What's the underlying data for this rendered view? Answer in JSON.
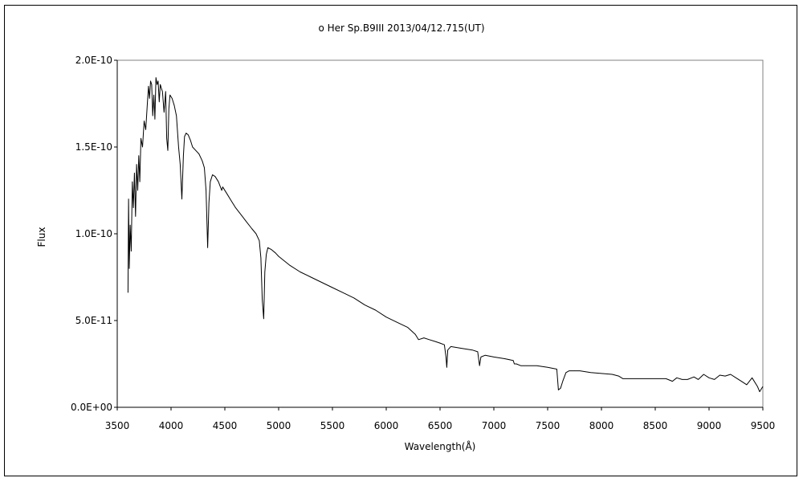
{
  "chart_data": {
    "type": "line",
    "title": "o Her   Sp.B9III   2013/04/12.715(UT)",
    "xlabel": "Wavelength(Å)",
    "ylabel": "Flux",
    "xlim": [
      3500,
      9500
    ],
    "ylim": [
      0,
      2e-10
    ],
    "x_ticks": [
      3500,
      4000,
      4500,
      5000,
      5500,
      6000,
      6500,
      7000,
      7500,
      8000,
      8500,
      9000,
      9500
    ],
    "x_tick_labels": [
      "3500",
      "4000",
      "4500",
      "5000",
      "5500",
      "6000",
      "6500",
      "7000",
      "7500",
      "8000",
      "8500",
      "9000",
      "9500"
    ],
    "y_ticks": [
      0,
      5e-11,
      1e-10,
      1.5e-10,
      2e-10
    ],
    "y_tick_labels": [
      "0.0E+00",
      "5.0E-11",
      "1.0E-10",
      "1.5E-10",
      "2.0E-10"
    ],
    "grid": false,
    "series": [
      {
        "color": "#000000",
        "points": [
          [
            3600,
            6.6e-11
          ],
          [
            3605,
            1.2e-10
          ],
          [
            3612,
            8e-11
          ],
          [
            3620,
            1.05e-10
          ],
          [
            3630,
            9e-11
          ],
          [
            3640,
            1.3e-10
          ],
          [
            3650,
            1.15e-10
          ],
          [
            3660,
            1.35e-10
          ],
          [
            3670,
            1.1e-10
          ],
          [
            3680,
            1.4e-10
          ],
          [
            3690,
            1.25e-10
          ],
          [
            3700,
            1.45e-10
          ],
          [
            3710,
            1.3e-10
          ],
          [
            3720,
            1.55e-10
          ],
          [
            3735,
            1.5e-10
          ],
          [
            3750,
            1.65e-10
          ],
          [
            3765,
            1.6e-10
          ],
          [
            3780,
            1.75e-10
          ],
          [
            3790,
            1.85e-10
          ],
          [
            3800,
            1.78e-10
          ],
          [
            3810,
            1.88e-10
          ],
          [
            3820,
            1.86e-10
          ],
          [
            3830,
            1.68e-10
          ],
          [
            3840,
            1.8e-10
          ],
          [
            3850,
            1.66e-10
          ],
          [
            3860,
            1.9e-10
          ],
          [
            3870,
            1.86e-10
          ],
          [
            3880,
            1.88e-10
          ],
          [
            3890,
            1.76e-10
          ],
          [
            3900,
            1.86e-10
          ],
          [
            3910,
            1.84e-10
          ],
          [
            3920,
            1.82e-10
          ],
          [
            3935,
            1.7e-10
          ],
          [
            3950,
            1.82e-10
          ],
          [
            3960,
            1.55e-10
          ],
          [
            3970,
            1.48e-10
          ],
          [
            3980,
            1.72e-10
          ],
          [
            3990,
            1.8e-10
          ],
          [
            4010,
            1.78e-10
          ],
          [
            4030,
            1.74e-10
          ],
          [
            4050,
            1.68e-10
          ],
          [
            4070,
            1.5e-10
          ],
          [
            4085,
            1.4e-10
          ],
          [
            4101,
            1.2e-10
          ],
          [
            4115,
            1.45e-10
          ],
          [
            4125,
            1.56e-10
          ],
          [
            4140,
            1.58e-10
          ],
          [
            4160,
            1.57e-10
          ],
          [
            4180,
            1.54e-10
          ],
          [
            4200,
            1.5e-10
          ],
          [
            4230,
            1.48e-10
          ],
          [
            4260,
            1.46e-10
          ],
          [
            4290,
            1.42e-10
          ],
          [
            4310,
            1.38e-10
          ],
          [
            4325,
            1.25e-10
          ],
          [
            4340,
            9.2e-11
          ],
          [
            4352,
            1.18e-10
          ],
          [
            4365,
            1.3e-10
          ],
          [
            4385,
            1.34e-10
          ],
          [
            4410,
            1.33e-10
          ],
          [
            4440,
            1.3e-10
          ],
          [
            4471,
            1.25e-10
          ],
          [
            4480,
            1.27e-10
          ],
          [
            4520,
            1.23e-10
          ],
          [
            4560,
            1.19e-10
          ],
          [
            4600,
            1.15e-10
          ],
          [
            4650,
            1.11e-10
          ],
          [
            4700,
            1.07e-10
          ],
          [
            4750,
            1.03e-10
          ],
          [
            4790,
            1e-10
          ],
          [
            4820,
            9.6e-11
          ],
          [
            4835,
            8.6e-11
          ],
          [
            4848,
            6.2e-11
          ],
          [
            4861,
            5.1e-11
          ],
          [
            4872,
            7.8e-11
          ],
          [
            4885,
            8.8e-11
          ],
          [
            4900,
            9.2e-11
          ],
          [
            4930,
            9.1e-11
          ],
          [
            4970,
            8.9e-11
          ],
          [
            5000,
            8.7e-11
          ],
          [
            5100,
            8.2e-11
          ],
          [
            5200,
            7.8e-11
          ],
          [
            5300,
            7.5e-11
          ],
          [
            5400,
            7.2e-11
          ],
          [
            5500,
            6.9e-11
          ],
          [
            5600,
            6.6e-11
          ],
          [
            5700,
            6.3e-11
          ],
          [
            5800,
            5.9e-11
          ],
          [
            5900,
            5.6e-11
          ],
          [
            6000,
            5.2e-11
          ],
          [
            6100,
            4.9e-11
          ],
          [
            6200,
            4.6e-11
          ],
          [
            6270,
            4.2e-11
          ],
          [
            6300,
            3.9e-11
          ],
          [
            6350,
            4e-11
          ],
          [
            6400,
            3.9e-11
          ],
          [
            6450,
            3.8e-11
          ],
          [
            6500,
            3.7e-11
          ],
          [
            6540,
            3.6e-11
          ],
          [
            6555,
            2.9e-11
          ],
          [
            6563,
            2.3e-11
          ],
          [
            6572,
            3.3e-11
          ],
          [
            6600,
            3.5e-11
          ],
          [
            6700,
            3.4e-11
          ],
          [
            6800,
            3.3e-11
          ],
          [
            6850,
            3.2e-11
          ],
          [
            6867,
            2.4e-11
          ],
          [
            6880,
            2.9e-11
          ],
          [
            6920,
            3e-11
          ],
          [
            7000,
            2.9e-11
          ],
          [
            7100,
            2.8e-11
          ],
          [
            7180,
            2.7e-11
          ],
          [
            7190,
            2.5e-11
          ],
          [
            7210,
            2.5e-11
          ],
          [
            7250,
            2.4e-11
          ],
          [
            7300,
            2.4e-11
          ],
          [
            7400,
            2.4e-11
          ],
          [
            7500,
            2.3e-11
          ],
          [
            7585,
            2.2e-11
          ],
          [
            7600,
            1e-11
          ],
          [
            7620,
            1.1e-11
          ],
          [
            7640,
            1.5e-11
          ],
          [
            7670,
            2e-11
          ],
          [
            7700,
            2.1e-11
          ],
          [
            7800,
            2.1e-11
          ],
          [
            7900,
            2e-11
          ],
          [
            8000,
            1.95e-11
          ],
          [
            8100,
            1.9e-11
          ],
          [
            8160,
            1.8e-11
          ],
          [
            8200,
            1.65e-11
          ],
          [
            8300,
            1.65e-11
          ],
          [
            8400,
            1.65e-11
          ],
          [
            8500,
            1.65e-11
          ],
          [
            8600,
            1.65e-11
          ],
          [
            8660,
            1.5e-11
          ],
          [
            8700,
            1.7e-11
          ],
          [
            8750,
            1.6e-11
          ],
          [
            8800,
            1.6e-11
          ],
          [
            8860,
            1.75e-11
          ],
          [
            8900,
            1.6e-11
          ],
          [
            8950,
            1.9e-11
          ],
          [
            9000,
            1.7e-11
          ],
          [
            9050,
            1.6e-11
          ],
          [
            9100,
            1.85e-11
          ],
          [
            9150,
            1.8e-11
          ],
          [
            9200,
            1.9e-11
          ],
          [
            9250,
            1.7e-11
          ],
          [
            9300,
            1.5e-11
          ],
          [
            9350,
            1.3e-11
          ],
          [
            9400,
            1.7e-11
          ],
          [
            9450,
            1.2e-11
          ],
          [
            9470,
            9e-12
          ],
          [
            9500,
            1.2e-11
          ]
        ]
      }
    ]
  }
}
